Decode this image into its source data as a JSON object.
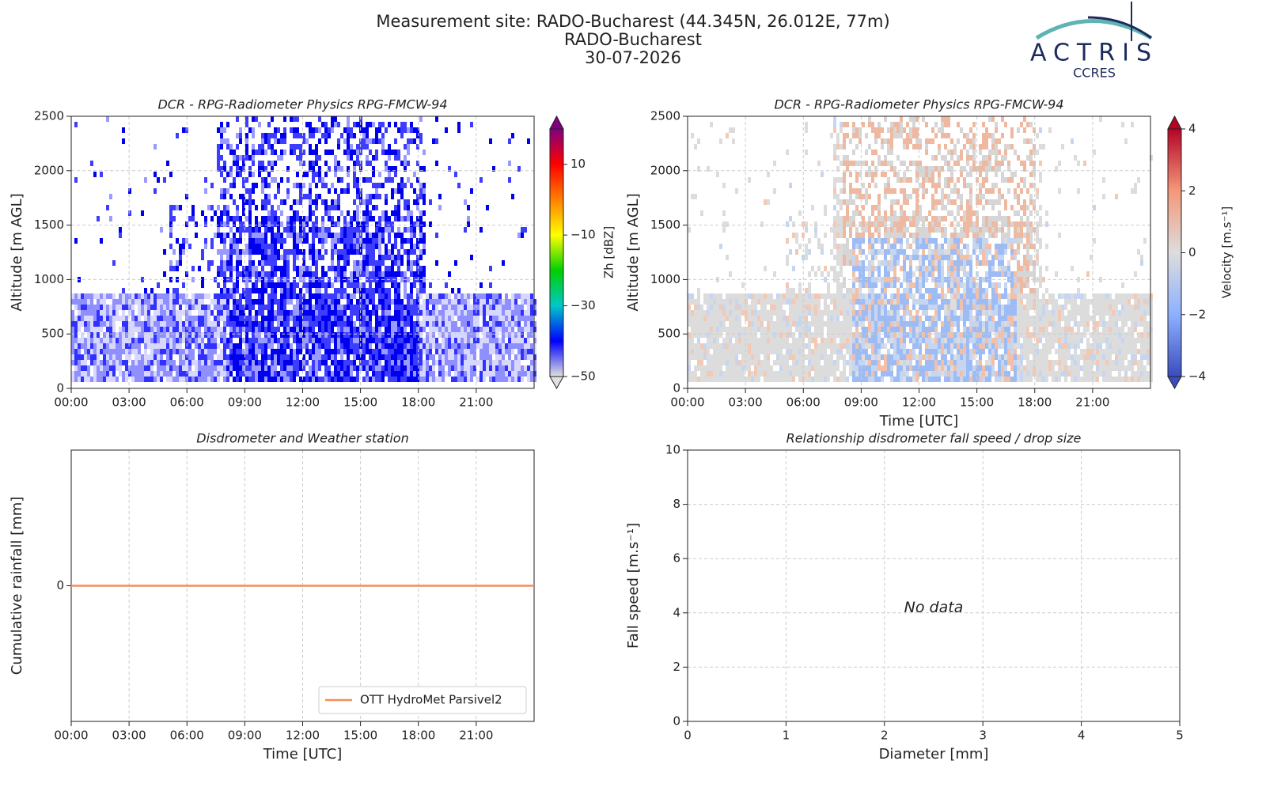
{
  "header": {
    "title": [
      "Measurement site: RADO-Bucharest (44.345N, 26.012E, 77m)",
      "RADO-Bucharest",
      "30-07-2026"
    ],
    "logo": "ACTRIS",
    "logo_sub": "CCRES"
  },
  "chart_data": [
    {
      "type": "heatmap",
      "title": "DCR - RPG-Radiometer Physics RPG-FMCW-94",
      "ylabel": "Altitude [m AGL]",
      "xlim": [
        0,
        24
      ],
      "xticks": [
        {
          "value": 0,
          "label": "00:00"
        },
        {
          "value": 3,
          "label": "03:00"
        },
        {
          "value": 6,
          "label": "06:00"
        },
        {
          "value": 9,
          "label": "09:00"
        },
        {
          "value": 12,
          "label": "12:00"
        },
        {
          "value": 15,
          "label": "15:00"
        },
        {
          "value": 18,
          "label": "18:00"
        },
        {
          "value": 21,
          "label": "21:00"
        }
      ],
      "ylim": [
        0,
        2500
      ],
      "yticks": [
        0,
        500,
        1000,
        1500,
        2000,
        2500
      ],
      "grid": true,
      "colorbar_label": "Zh [dBZ]",
      "clim": [
        -50,
        20
      ],
      "cticks": [
        {
          "value": -50,
          "label": "−50"
        },
        {
          "value": -30,
          "label": "−30"
        },
        {
          "value": -10,
          "label": "−10"
        },
        10
      ],
      "colormap": [
        "#e0e0e0",
        "#0000ff",
        "#00c8c8",
        "#00d000",
        "#ffff00",
        "#ff8000",
        "#ff0000",
        "#800080"
      ]
    },
    {
      "type": "heatmap",
      "title": "DCR - RPG-Radiometer Physics RPG-FMCW-94",
      "ylabel": "Altitude [m AGL]",
      "xlabel": "Time [UTC]",
      "xlim": [
        0,
        24
      ],
      "xticks": [
        {
          "value": 0,
          "label": "00:00"
        },
        {
          "value": 3,
          "label": "03:00"
        },
        {
          "value": 6,
          "label": "06:00"
        },
        {
          "value": 9,
          "label": "09:00"
        },
        {
          "value": 12,
          "label": "12:00"
        },
        {
          "value": 15,
          "label": "15:00"
        },
        {
          "value": 18,
          "label": "18:00"
        },
        {
          "value": 21,
          "label": "21:00"
        }
      ],
      "ylim": [
        0,
        2500
      ],
      "yticks": [
        0,
        500,
        1000,
        1500,
        2000,
        2500
      ],
      "grid": true,
      "colorbar_label": "Velocity [m.s⁻¹]",
      "clim": [
        -4,
        4
      ],
      "cticks": [
        {
          "value": -4,
          "label": "−4"
        },
        {
          "value": -2,
          "label": "−2"
        },
        0,
        2,
        4
      ],
      "colormap": [
        "#3b4cc0",
        "#8db0fe",
        "#dddddd",
        "#f4987a",
        "#b40426"
      ]
    },
    {
      "type": "line",
      "title": "Disdrometer and Weather station",
      "ylabel": "Cumulative rainfall [mm]",
      "xlabel": "Time [UTC]",
      "x": [
        0,
        24
      ],
      "series": [
        {
          "name": "OTT HydroMet Parsivel2",
          "color": "#f28e5c",
          "values": [
            0,
            0
          ]
        }
      ],
      "xlim": [
        0,
        24
      ],
      "xticks": [
        {
          "value": 0,
          "label": "00:00"
        },
        {
          "value": 3,
          "label": "03:00"
        },
        {
          "value": 6,
          "label": "06:00"
        },
        {
          "value": 9,
          "label": "09:00"
        },
        {
          "value": 12,
          "label": "12:00"
        },
        {
          "value": 15,
          "label": "15:00"
        },
        {
          "value": 18,
          "label": "18:00"
        },
        {
          "value": 21,
          "label": "21:00"
        }
      ],
      "ylim": [
        -1,
        1
      ],
      "yticks": [
        0
      ],
      "grid": true,
      "legend": "lower right"
    },
    {
      "type": "scatter",
      "title": "Relationship disdrometer fall speed / drop size",
      "xlabel": "Diameter [mm]",
      "ylabel": "Fall speed [m.s⁻¹]",
      "annotation": "No data",
      "x": [],
      "values": [],
      "xlim": [
        0,
        5
      ],
      "xticks": [
        0,
        1,
        2,
        3,
        4,
        5
      ],
      "ylim": [
        0,
        10
      ],
      "yticks": [
        0,
        2,
        4,
        6,
        8,
        10
      ],
      "grid": true
    }
  ]
}
